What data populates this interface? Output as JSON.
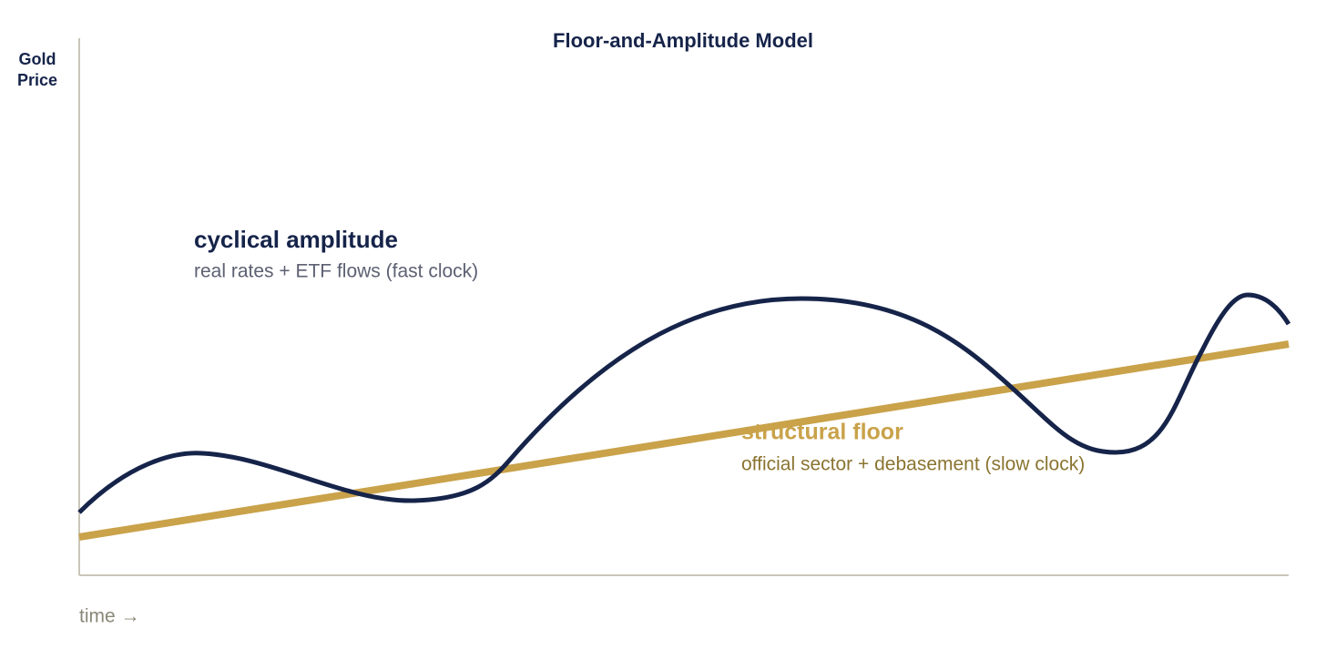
{
  "title": "Floor-and-Amplitude Model",
  "y_axis_label": [
    "Gold",
    "Price"
  ],
  "x_axis_label": "time →",
  "cyclical": {
    "title": "cyclical amplitude",
    "subtitle": "real rates + ETF flows (fast clock)"
  },
  "structural": {
    "title": "structural floor",
    "subtitle": "official sector + debasement (slow clock)"
  }
}
